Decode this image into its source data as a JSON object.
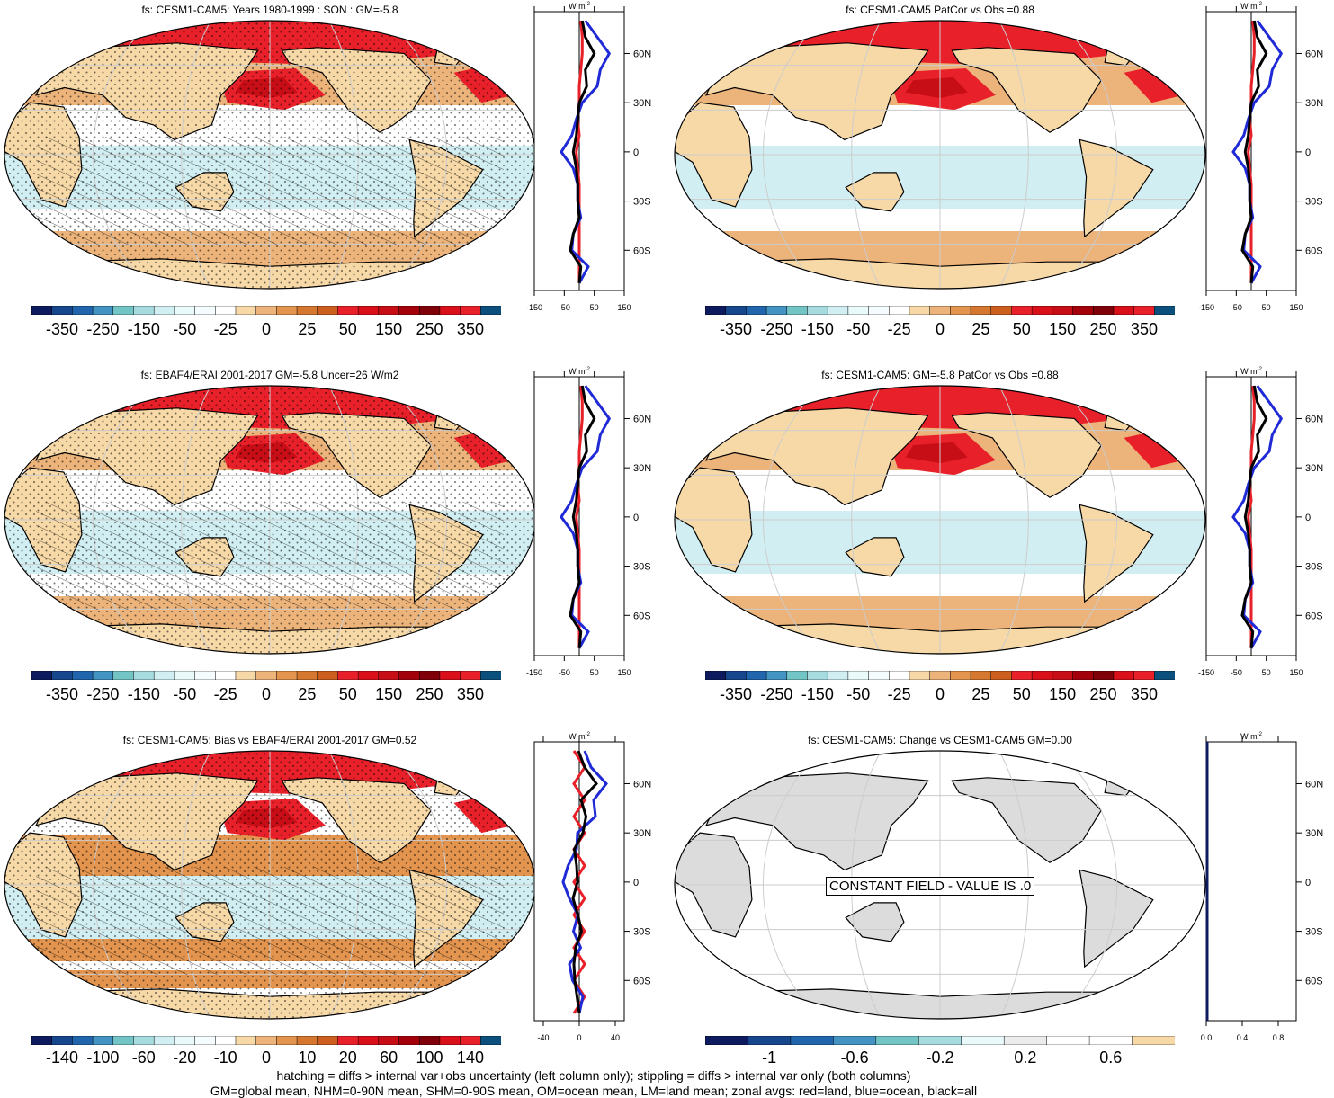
{
  "panels": [
    {
      "id": "p1",
      "title": "fs: CESM1-CAM5: Years 1980-1999 : SON : GM=-5.8",
      "hatching": true,
      "stippling": true,
      "constant": false,
      "scheme": "main"
    },
    {
      "id": "p2",
      "title": "fs: CESM1-CAM5 PatCor vs Obs =0.88",
      "hatching": false,
      "stippling": false,
      "constant": false,
      "scheme": "main"
    },
    {
      "id": "p3",
      "title": "fs: EBAF4/ERAI 2001-2017 GM=-5.8 Uncer=26 W/m2",
      "hatching": true,
      "stippling": true,
      "constant": false,
      "scheme": "main"
    },
    {
      "id": "p4",
      "title": "fs: CESM1-CAM5: GM=-5.8 PatCor vs Obs =0.88",
      "hatching": false,
      "stippling": false,
      "constant": false,
      "scheme": "main"
    },
    {
      "id": "p5",
      "title": "fs: CESM1-CAM5: Bias vs EBAF4/ERAI 2001-2017  GM=0.52",
      "hatching": true,
      "stippling": true,
      "constant": false,
      "scheme": "bias"
    },
    {
      "id": "p6",
      "title": "fs: CESM1-CAM5: Change vs CESM1-CAM5 GM=0.00",
      "hatching": false,
      "stippling": false,
      "constant": true,
      "constant_text": "CONSTANT FIELD - VALUE IS .0",
      "scheme": "change"
    }
  ],
  "zonal": {
    "unit_label": "W m",
    "unit_exp": "-2",
    "lat_ticks": [
      "60N",
      "30N",
      "0",
      "30S",
      "60S"
    ],
    "panels": [
      {
        "xticks": [
          "-150",
          "-50",
          "50",
          "150"
        ],
        "xlim": [
          -150,
          150
        ]
      },
      {
        "xticks": [
          "-150",
          "-50",
          "50",
          "150"
        ],
        "xlim": [
          -150,
          150
        ]
      },
      {
        "xticks": [
          "-150",
          "-50",
          "50",
          "150"
        ],
        "xlim": [
          -150,
          150
        ]
      },
      {
        "xticks": [
          "-150",
          "-50",
          "50",
          "150"
        ],
        "xlim": [
          -150,
          150
        ]
      },
      {
        "xticks": [
          "-40",
          "0",
          "40"
        ],
        "xlim": [
          -50,
          50
        ]
      },
      {
        "xticks": [
          "0.0",
          "0.4",
          "0.8"
        ],
        "xlim": [
          0,
          1
        ]
      }
    ]
  },
  "colorbars": {
    "main": {
      "labels": [
        "-350",
        "-250",
        "-150",
        "-50",
        "-25",
        "0",
        "25",
        "50",
        "150",
        "250",
        "350"
      ],
      "colors": [
        "#0d1b5e",
        "#16468c",
        "#2166ac",
        "#4393c3",
        "#73c5c5",
        "#a6dbe0",
        "#d1eff2",
        "#eaf9fa",
        "#f4fcfd",
        "#ffffff",
        "#f7d9a8",
        "#ecb37a",
        "#e3944e",
        "#d6772f",
        "#cc5f1e",
        "#e8202a",
        "#d90f1a",
        "#c70d16",
        "#a3000b",
        "#7f0008",
        "#d90f1a",
        "#e8202a",
        "#0b4f7c"
      ]
    },
    "bias": {
      "labels": [
        "-140",
        "-100",
        "-60",
        "-20",
        "-10",
        "0",
        "10",
        "20",
        "60",
        "100",
        "140"
      ],
      "colors": [
        "#0d1b5e",
        "#16468c",
        "#2166ac",
        "#4393c3",
        "#73c5c5",
        "#a6dbe0",
        "#d1eff2",
        "#eaf9fa",
        "#f4fcfd",
        "#ffffff",
        "#f7d9a8",
        "#ecb37a",
        "#e3944e",
        "#d6772f",
        "#cc5f1e",
        "#e8202a",
        "#d90f1a",
        "#c70d16",
        "#a3000b",
        "#7f0008",
        "#d90f1a",
        "#e8202a",
        "#0b4f7c"
      ]
    },
    "change": {
      "labels": [
        "-1",
        "-0.6",
        "-0.2",
        "0.2",
        "0.6"
      ],
      "colors": [
        "#0d1b5e",
        "#16468c",
        "#2166ac",
        "#4393c3",
        "#73c5c5",
        "#a6dbe0",
        "#eaf9fa",
        "#ececec",
        "#ffffff",
        "#ffffff",
        "#f7d9a8"
      ]
    }
  },
  "footnotes": {
    "line1": "hatching = diffs > internal var+obs uncertainty (left column only); stippling = diffs > internal var only (both columns)",
    "line2": "GM=global mean, NHM=0-90N mean, SHM=0-90S mean, OM=ocean mean, LM=land mean; zonal avgs: red=land, blue=ocean, black=all"
  },
  "chart_data": [
    {
      "type": "heatmap",
      "title": "fs: CESM1-CAM5: Years 1980-1999 : SON : GM=-5.8",
      "colorbar_ticks": [
        -350,
        -250,
        -150,
        -50,
        -25,
        0,
        25,
        50,
        150,
        250,
        350
      ],
      "zonal_mean": {
        "lat": [
          80,
          70,
          60,
          50,
          40,
          30,
          20,
          10,
          0,
          -10,
          -20,
          -30,
          -40,
          -50,
          -60,
          -70,
          -80
        ],
        "all": [
          10,
          20,
          50,
          20,
          25,
          0,
          -5,
          -10,
          -20,
          -10,
          -5,
          -5,
          0,
          -20,
          -30,
          5,
          0
        ],
        "ocean": [
          20,
          60,
          100,
          70,
          60,
          10,
          -10,
          -25,
          -60,
          -20,
          -5,
          -5,
          5,
          -20,
          -25,
          30,
          0
        ],
        "land": [
          5,
          10,
          10,
          5,
          0,
          0,
          -5,
          0,
          -10,
          -5,
          0,
          0,
          0,
          0,
          0,
          0,
          0
        ]
      }
    },
    {
      "type": "heatmap",
      "title": "fs: CESM1-CAM5 PatCor vs Obs =0.88",
      "colorbar_ticks": [
        -350,
        -250,
        -150,
        -50,
        -25,
        0,
        25,
        50,
        150,
        250,
        350
      ]
    },
    {
      "type": "heatmap",
      "title": "fs: EBAF4/ERAI 2001-2017 GM=-5.8 Uncer=26 W/m2",
      "colorbar_ticks": [
        -350,
        -250,
        -150,
        -50,
        -25,
        0,
        25,
        50,
        150,
        250,
        350
      ]
    },
    {
      "type": "heatmap",
      "title": "fs: CESM1-CAM5: GM=-5.8 PatCor vs Obs =0.88",
      "colorbar_ticks": [
        -350,
        -250,
        -150,
        -50,
        -25,
        0,
        25,
        50,
        150,
        250,
        350
      ]
    },
    {
      "type": "heatmap",
      "title": "fs: CESM1-CAM5: Bias vs EBAF4/ERAI 2001-2017  GM=0.52",
      "colorbar_ticks": [
        -140,
        -100,
        -60,
        -20,
        -10,
        0,
        10,
        20,
        60,
        100,
        140
      ]
    },
    {
      "type": "heatmap",
      "title": "fs: CESM1-CAM5: Change vs CESM1-CAM5 GM=0.00",
      "colorbar_ticks": [
        -1,
        -0.6,
        -0.2,
        0.2,
        0.6
      ]
    }
  ]
}
